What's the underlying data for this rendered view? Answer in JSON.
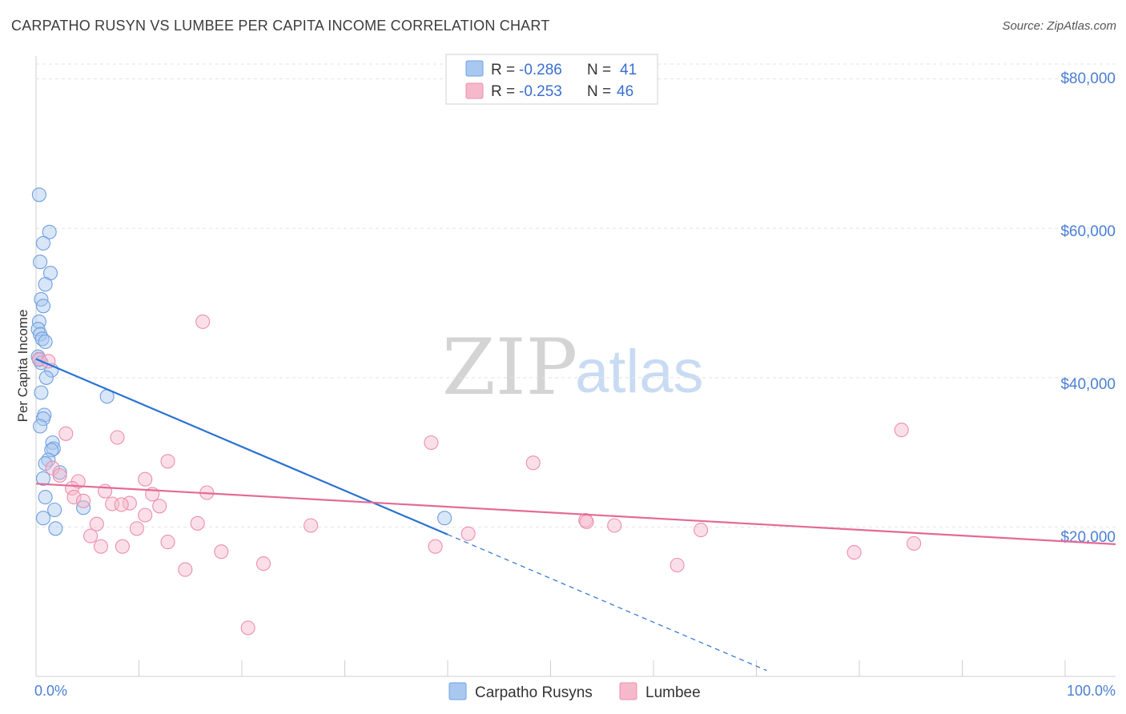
{
  "header": {
    "title": "CARPATHO RUSYN VS LUMBEE PER CAPITA INCOME CORRELATION CHART",
    "source": "Source: ZipAtlas.com"
  },
  "watermark": {
    "zip": "ZIP",
    "atlas": "atlas"
  },
  "colors": {
    "blue_fill": "#a9c8f0",
    "blue_stroke": "#6f9fe0",
    "blue_line": "#2a72d4",
    "pink_fill": "#f6b9cc",
    "pink_stroke": "#ec8fac",
    "pink_line": "#e46a95",
    "axis_text": "#4a7fd4",
    "grid": "#e3e3e3"
  },
  "legend": {
    "rows": [
      {
        "r_label": "R =",
        "r_value": "-0.286",
        "n_label": "N =",
        "n_value": "41"
      },
      {
        "r_label": "R =",
        "r_value": "-0.253",
        "n_label": "N =",
        "n_value": "46"
      }
    ]
  },
  "bottom_legend": [
    "Carpatho Rusyns",
    "Lumbee"
  ],
  "chart_data": {
    "type": "scatter",
    "title": "CARPATHO RUSYN VS LUMBEE PER CAPITA INCOME CORRELATION CHART",
    "xlabel": "",
    "ylabel": "Per Capita Income",
    "xlim": [
      0,
      100
    ],
    "ylim": [
      0,
      82000
    ],
    "x_tick_labels": [
      "0.0%",
      "100.0%"
    ],
    "y_ticks": [
      20000,
      40000,
      60000,
      80000
    ],
    "y_tick_labels": [
      "$20,000",
      "$40,000",
      "$60,000",
      "$80,000"
    ],
    "grid": true,
    "series": [
      {
        "name": "Carpatho Rusyns",
        "r": -0.286,
        "n": 41,
        "trend": {
          "x0": 0,
          "y0": 42500,
          "x1": 40,
          "y1": 19000,
          "dashed_to_x": 71
        },
        "points": [
          [
            0.3,
            64500
          ],
          [
            1.3,
            59500
          ],
          [
            0.7,
            58000
          ],
          [
            0.4,
            55500
          ],
          [
            1.4,
            54000
          ],
          [
            0.9,
            52500
          ],
          [
            0.5,
            50500
          ],
          [
            0.7,
            49600
          ],
          [
            0.3,
            47500
          ],
          [
            0.2,
            46500
          ],
          [
            0.4,
            45800
          ],
          [
            0.6,
            45200
          ],
          [
            0.9,
            44800
          ],
          [
            0.2,
            42800
          ],
          [
            0.3,
            42400
          ],
          [
            0.5,
            42000
          ],
          [
            1.5,
            41000
          ],
          [
            1.0,
            40000
          ],
          [
            0.5,
            38000
          ],
          [
            6.9,
            37500
          ],
          [
            0.8,
            35000
          ],
          [
            0.7,
            34500
          ],
          [
            0.4,
            33500
          ],
          [
            1.6,
            31300
          ],
          [
            1.7,
            30500
          ],
          [
            1.5,
            30300
          ],
          [
            1.2,
            29000
          ],
          [
            0.9,
            28500
          ],
          [
            2.3,
            27300
          ],
          [
            0.7,
            26500
          ],
          [
            0.9,
            24000
          ],
          [
            4.6,
            22600
          ],
          [
            1.8,
            22300
          ],
          [
            0.7,
            21200
          ],
          [
            39.7,
            21200
          ],
          [
            1.9,
            19800
          ]
        ]
      },
      {
        "name": "Lumbee",
        "r": -0.253,
        "n": 46,
        "trend": {
          "x0": 0,
          "y0": 25800,
          "x1": 100,
          "y1": 17700
        },
        "points": [
          [
            16.2,
            47500
          ],
          [
            0.3,
            42500
          ],
          [
            1.2,
            42200
          ],
          [
            84.1,
            33000
          ],
          [
            2.9,
            32500
          ],
          [
            7.9,
            32000
          ],
          [
            38.4,
            31300
          ],
          [
            12.8,
            28800
          ],
          [
            48.3,
            28600
          ],
          [
            1.6,
            27900
          ],
          [
            2.3,
            26900
          ],
          [
            10.6,
            26400
          ],
          [
            4.1,
            26100
          ],
          [
            3.5,
            25200
          ],
          [
            6.7,
            24800
          ],
          [
            16.6,
            24600
          ],
          [
            11.3,
            24400
          ],
          [
            3.7,
            24000
          ],
          [
            4.6,
            23500
          ],
          [
            9.1,
            23200
          ],
          [
            7.4,
            23100
          ],
          [
            8.3,
            23000
          ],
          [
            12.0,
            22800
          ],
          [
            10.6,
            21600
          ],
          [
            5.9,
            20400
          ],
          [
            15.7,
            20500
          ],
          [
            53.4,
            20900
          ],
          [
            53.5,
            20700
          ],
          [
            56.2,
            20200
          ],
          [
            26.7,
            20200
          ],
          [
            9.8,
            19800
          ],
          [
            64.6,
            19600
          ],
          [
            42.0,
            19100
          ],
          [
            5.3,
            18800
          ],
          [
            12.8,
            18000
          ],
          [
            85.3,
            17800
          ],
          [
            6.3,
            17400
          ],
          [
            8.4,
            17400
          ],
          [
            38.8,
            17400
          ],
          [
            18.0,
            16700
          ],
          [
            79.5,
            16600
          ],
          [
            22.1,
            15100
          ],
          [
            62.3,
            14900
          ],
          [
            14.5,
            14300
          ],
          [
            20.6,
            6500
          ]
        ]
      }
    ]
  }
}
